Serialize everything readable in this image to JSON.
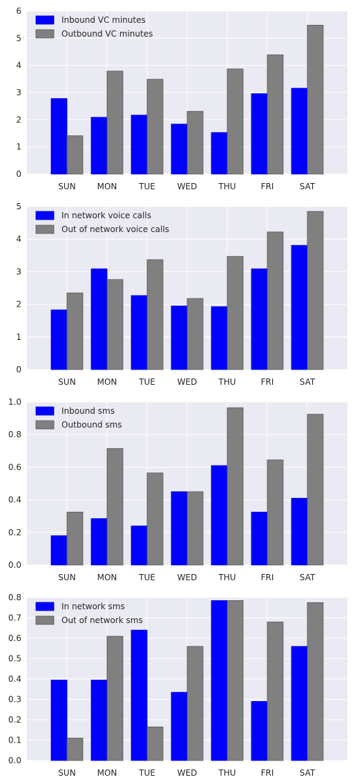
{
  "chart_data": [
    {
      "type": "bar",
      "categories": [
        "SUN",
        "MON",
        "TUE",
        "WED",
        "THU",
        "FRI",
        "SAT"
      ],
      "ylim": [
        0,
        6
      ],
      "yticks": [
        "0",
        "1",
        "2",
        "3",
        "4",
        "5",
        "6"
      ],
      "grid": true,
      "legend_position": "top-left",
      "series": [
        {
          "name": "Inbound VC minutes",
          "color": "#0000ff",
          "values": [
            2.78,
            2.09,
            2.17,
            1.84,
            1.53,
            2.96,
            3.16
          ]
        },
        {
          "name": "Outbound VC minutes",
          "color": "#808080",
          "values": [
            1.41,
            3.79,
            3.49,
            2.31,
            3.87,
            4.39,
            5.48
          ]
        }
      ]
    },
    {
      "type": "bar",
      "categories": [
        "SUN",
        "MON",
        "TUE",
        "WED",
        "THU",
        "FRI",
        "SAT"
      ],
      "ylim": [
        0,
        5
      ],
      "yticks": [
        "0",
        "1",
        "2",
        "3",
        "4",
        "5"
      ],
      "grid": true,
      "legend_position": "top-left",
      "series": [
        {
          "name": "In network voice calls",
          "color": "#0000ff",
          "values": [
            1.83,
            3.09,
            2.27,
            1.95,
            1.93,
            3.09,
            3.81
          ]
        },
        {
          "name": "Out of network voice calls",
          "color": "#808080",
          "values": [
            2.35,
            2.76,
            3.37,
            2.18,
            3.47,
            4.22,
            4.85
          ]
        }
      ]
    },
    {
      "type": "bar",
      "categories": [
        "SUN",
        "MON",
        "TUE",
        "WED",
        "THU",
        "FRI",
        "SAT"
      ],
      "ylim": [
        0,
        1.0
      ],
      "yticks": [
        "0.0",
        "0.2",
        "0.4",
        "0.6",
        "0.8",
        "1.0"
      ],
      "grid": true,
      "legend_position": "top-left",
      "series": [
        {
          "name": "Inbound sms",
          "color": "#0000ff",
          "values": [
            0.18,
            0.285,
            0.24,
            0.45,
            0.61,
            0.325,
            0.41
          ]
        },
        {
          "name": "Outbound sms",
          "color": "#808080",
          "values": [
            0.325,
            0.715,
            0.565,
            0.45,
            0.965,
            0.645,
            0.925
          ]
        }
      ]
    },
    {
      "type": "bar",
      "categories": [
        "SUN",
        "MON",
        "TUE",
        "WED",
        "THU",
        "FRI",
        "SAT"
      ],
      "ylim": [
        0,
        0.8
      ],
      "yticks": [
        "0.0",
        "0.1",
        "0.2",
        "0.3",
        "0.4",
        "0.5",
        "0.6",
        "0.7",
        "0.8"
      ],
      "grid": true,
      "legend_position": "top-left",
      "series": [
        {
          "name": "In network sms",
          "color": "#0000ff",
          "values": [
            0.395,
            0.395,
            0.64,
            0.335,
            0.785,
            0.29,
            0.56
          ]
        },
        {
          "name": "Out of network sms",
          "color": "#808080",
          "values": [
            0.11,
            0.61,
            0.165,
            0.56,
            0.785,
            0.68,
            0.775
          ]
        }
      ]
    }
  ]
}
